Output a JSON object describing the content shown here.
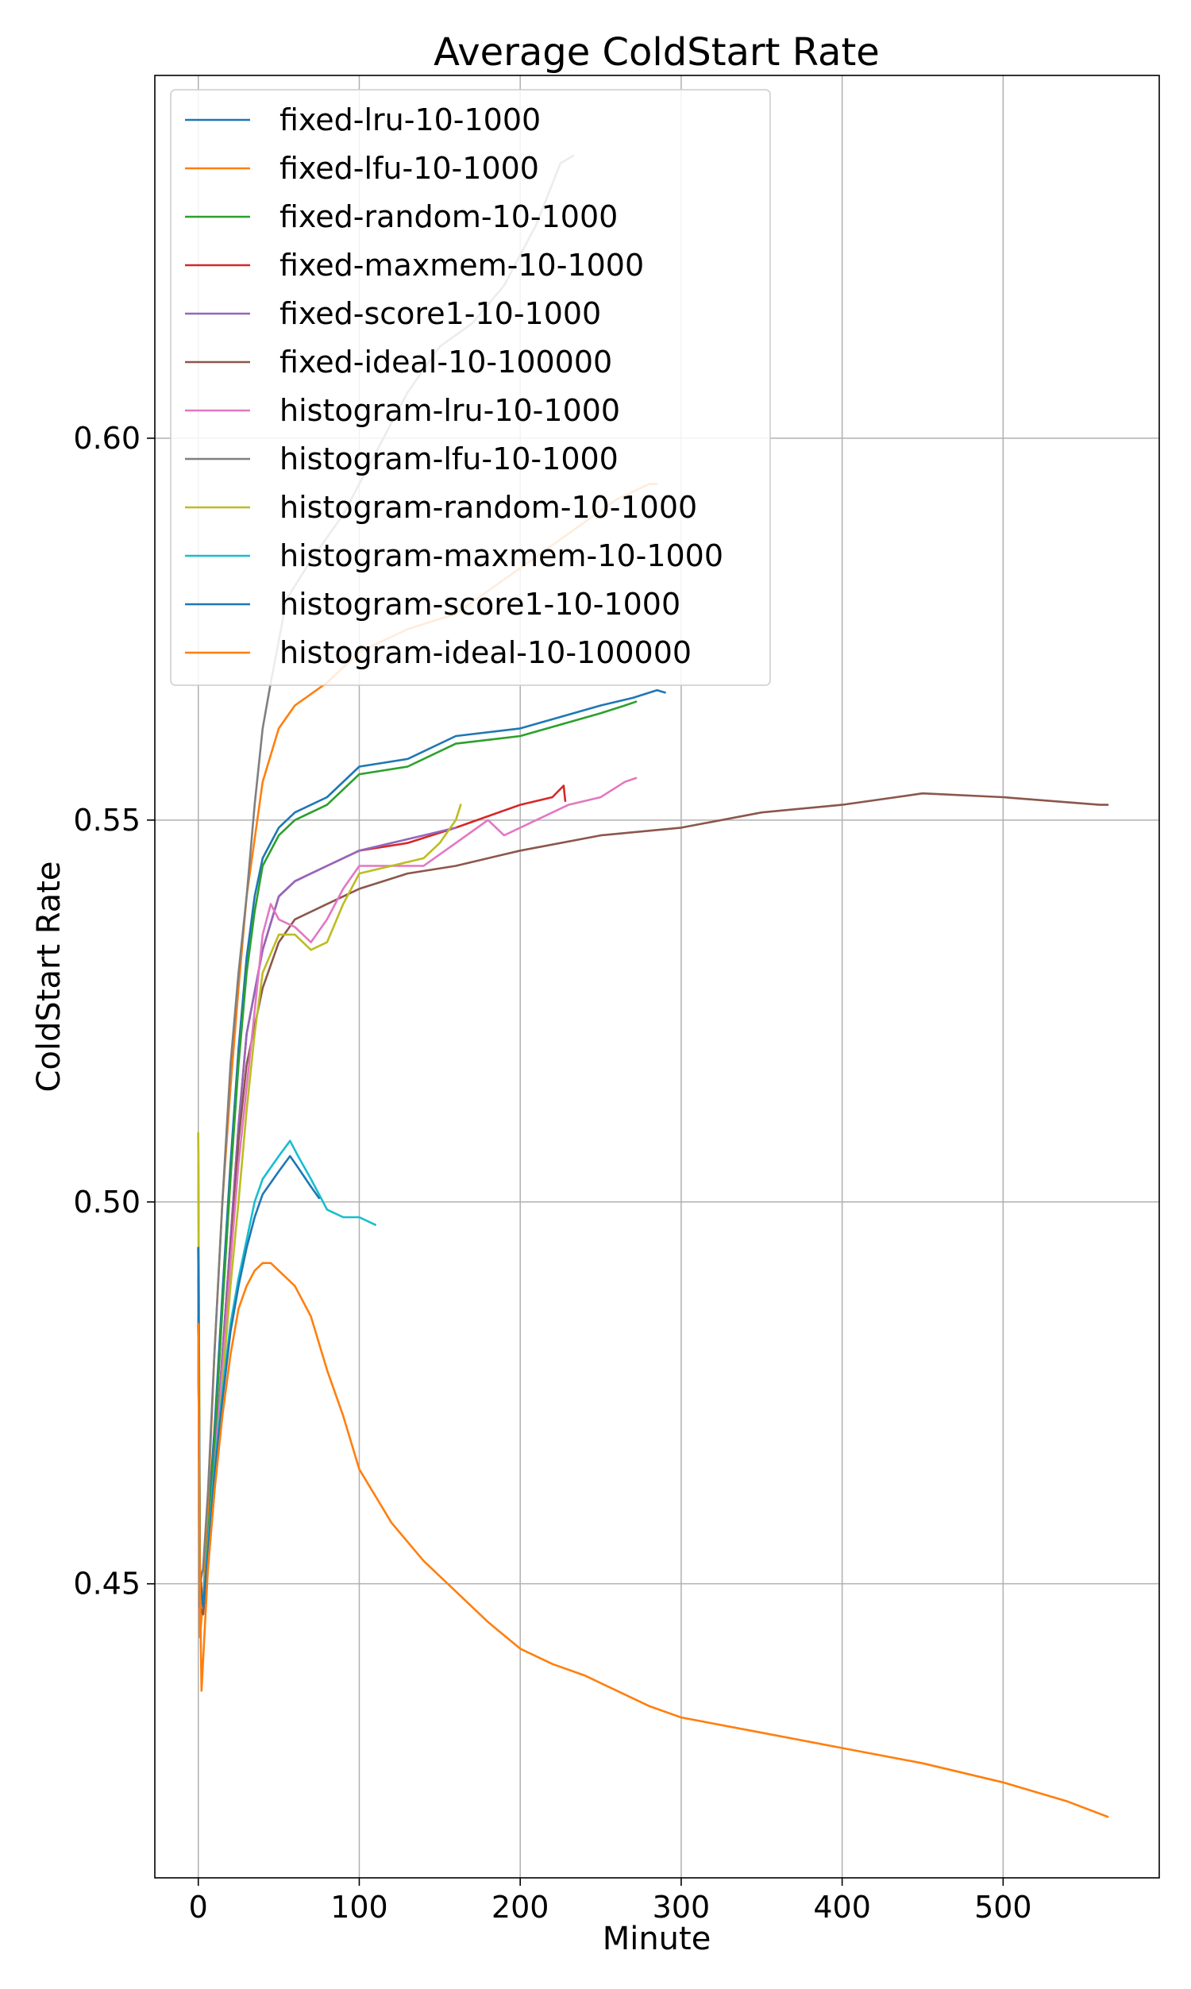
{
  "chart_data": {
    "type": "line",
    "title": "Average ColdStart Rate",
    "xlabel": "Minute",
    "ylabel": "ColdStart Rate",
    "xlim": [
      -27,
      597
    ],
    "ylim": [
      0.4115,
      0.6475
    ],
    "xticks": [
      0,
      100,
      200,
      300,
      400,
      500
    ],
    "yticks": [
      0.45,
      0.5,
      0.55,
      0.6
    ],
    "xtick_labels": [
      "0",
      "100",
      "200",
      "300",
      "400",
      "500"
    ],
    "ytick_labels": [
      "0.45",
      "0.50",
      "0.55",
      "0.60"
    ],
    "grid": true,
    "legend_position": "top-left",
    "series": [
      {
        "name": "fixed-lru-10-1000",
        "color": "#1f77b4",
        "points": [
          [
            0,
            0.494
          ],
          [
            1,
            0.452
          ],
          [
            3,
            0.446
          ],
          [
            6,
            0.458
          ],
          [
            10,
            0.47
          ],
          [
            15,
            0.488
          ],
          [
            20,
            0.505
          ],
          [
            25,
            0.52
          ],
          [
            30,
            0.532
          ],
          [
            35,
            0.54
          ],
          [
            40,
            0.545
          ],
          [
            50,
            0.549
          ],
          [
            60,
            0.551
          ],
          [
            80,
            0.553
          ],
          [
            100,
            0.557
          ],
          [
            130,
            0.558
          ],
          [
            160,
            0.561
          ],
          [
            200,
            0.562
          ],
          [
            250,
            0.565
          ],
          [
            270,
            0.566
          ],
          [
            285,
            0.567
          ],
          [
            290,
            0.5667
          ]
        ]
      },
      {
        "name": "fixed-lfu-10-1000",
        "color": "#ff7f0e",
        "points": [
          [
            0,
            0.485
          ],
          [
            1,
            0.443
          ],
          [
            3,
            0.448
          ],
          [
            6,
            0.46
          ],
          [
            10,
            0.48
          ],
          [
            15,
            0.5
          ],
          [
            20,
            0.515
          ],
          [
            25,
            0.528
          ],
          [
            30,
            0.54
          ],
          [
            40,
            0.555
          ],
          [
            50,
            0.562
          ],
          [
            60,
            0.565
          ],
          [
            80,
            0.568
          ],
          [
            100,
            0.572
          ],
          [
            130,
            0.575
          ],
          [
            160,
            0.577
          ],
          [
            200,
            0.583
          ],
          [
            220,
            0.586
          ],
          [
            240,
            0.589
          ],
          [
            260,
            0.592
          ],
          [
            280,
            0.594
          ],
          [
            285,
            0.594
          ]
        ]
      },
      {
        "name": "fixed-random-10-1000",
        "color": "#2ca02c",
        "points": [
          [
            0,
            0.509
          ],
          [
            1,
            0.45
          ],
          [
            3,
            0.447
          ],
          [
            6,
            0.456
          ],
          [
            10,
            0.468
          ],
          [
            15,
            0.486
          ],
          [
            20,
            0.503
          ],
          [
            25,
            0.518
          ],
          [
            30,
            0.53
          ],
          [
            35,
            0.538
          ],
          [
            40,
            0.544
          ],
          [
            50,
            0.548
          ],
          [
            60,
            0.55
          ],
          [
            80,
            0.552
          ],
          [
            100,
            0.556
          ],
          [
            130,
            0.557
          ],
          [
            160,
            0.56
          ],
          [
            200,
            0.561
          ],
          [
            250,
            0.564
          ],
          [
            265,
            0.565
          ],
          [
            272,
            0.5655
          ]
        ]
      },
      {
        "name": "fixed-maxmem-10-1000",
        "color": "#d62728",
        "points": [
          [
            0,
            0.484
          ],
          [
            1,
            0.45
          ],
          [
            3,
            0.447
          ],
          [
            6,
            0.455
          ],
          [
            10,
            0.465
          ],
          [
            15,
            0.48
          ],
          [
            20,
            0.495
          ],
          [
            25,
            0.51
          ],
          [
            30,
            0.522
          ],
          [
            40,
            0.533
          ],
          [
            50,
            0.54
          ],
          [
            60,
            0.542
          ],
          [
            80,
            0.544
          ],
          [
            100,
            0.546
          ],
          [
            130,
            0.547
          ],
          [
            160,
            0.549
          ],
          [
            200,
            0.552
          ],
          [
            220,
            0.553
          ],
          [
            227,
            0.5545
          ],
          [
            228,
            0.5525
          ]
        ]
      },
      {
        "name": "fixed-score1-10-1000",
        "color": "#9467bd",
        "points": [
          [
            0,
            0.484
          ],
          [
            1,
            0.45
          ],
          [
            3,
            0.447
          ],
          [
            6,
            0.455
          ],
          [
            10,
            0.465
          ],
          [
            15,
            0.48
          ],
          [
            20,
            0.495
          ],
          [
            25,
            0.51
          ],
          [
            30,
            0.522
          ],
          [
            40,
            0.533
          ],
          [
            50,
            0.54
          ],
          [
            60,
            0.542
          ],
          [
            80,
            0.544
          ],
          [
            100,
            0.546
          ],
          [
            120,
            0.547
          ],
          [
            140,
            0.548
          ],
          [
            160,
            0.549
          ]
        ]
      },
      {
        "name": "fixed-ideal-10-100000",
        "color": "#8c564b",
        "points": [
          [
            0,
            0.484
          ],
          [
            1,
            0.447
          ],
          [
            3,
            0.446
          ],
          [
            6,
            0.452
          ],
          [
            10,
            0.462
          ],
          [
            15,
            0.478
          ],
          [
            20,
            0.493
          ],
          [
            25,
            0.508
          ],
          [
            30,
            0.518
          ],
          [
            40,
            0.528
          ],
          [
            50,
            0.534
          ],
          [
            60,
            0.537
          ],
          [
            80,
            0.539
          ],
          [
            100,
            0.541
          ],
          [
            130,
            0.543
          ],
          [
            160,
            0.544
          ],
          [
            200,
            0.546
          ],
          [
            250,
            0.548
          ],
          [
            300,
            0.549
          ],
          [
            350,
            0.551
          ],
          [
            400,
            0.552
          ],
          [
            450,
            0.5535
          ],
          [
            500,
            0.553
          ],
          [
            530,
            0.5525
          ],
          [
            560,
            0.552
          ],
          [
            565,
            0.552
          ]
        ]
      },
      {
        "name": "histogram-lru-10-1000",
        "color": "#e377c2",
        "points": [
          [
            0,
            0.484
          ],
          [
            1,
            0.45
          ],
          [
            3,
            0.447
          ],
          [
            6,
            0.455
          ],
          [
            10,
            0.465
          ],
          [
            15,
            0.478
          ],
          [
            20,
            0.492
          ],
          [
            25,
            0.505
          ],
          [
            30,
            0.515
          ],
          [
            35,
            0.525
          ],
          [
            40,
            0.535
          ],
          [
            45,
            0.539
          ],
          [
            50,
            0.537
          ],
          [
            60,
            0.536
          ],
          [
            70,
            0.534
          ],
          [
            80,
            0.537
          ],
          [
            90,
            0.541
          ],
          [
            100,
            0.544
          ],
          [
            120,
            0.544
          ],
          [
            140,
            0.544
          ],
          [
            160,
            0.547
          ],
          [
            180,
            0.55
          ],
          [
            190,
            0.548
          ],
          [
            210,
            0.55
          ],
          [
            230,
            0.552
          ],
          [
            250,
            0.553
          ],
          [
            265,
            0.555
          ],
          [
            272,
            0.5555
          ]
        ]
      },
      {
        "name": "histogram-lfu-10-1000",
        "color": "#7f7f7f",
        "points": [
          [
            0,
            0.49
          ],
          [
            1,
            0.45
          ],
          [
            3,
            0.452
          ],
          [
            6,
            0.462
          ],
          [
            10,
            0.48
          ],
          [
            15,
            0.5
          ],
          [
            20,
            0.518
          ],
          [
            25,
            0.53
          ],
          [
            30,
            0.54
          ],
          [
            35,
            0.552
          ],
          [
            40,
            0.562
          ],
          [
            45,
            0.568
          ],
          [
            55,
            0.579
          ],
          [
            70,
            0.584
          ],
          [
            90,
            0.59
          ],
          [
            110,
            0.598
          ],
          [
            130,
            0.606
          ],
          [
            150,
            0.612
          ],
          [
            170,
            0.615
          ],
          [
            190,
            0.62
          ],
          [
            210,
            0.628
          ],
          [
            225,
            0.636
          ],
          [
            233,
            0.637
          ]
        ]
      },
      {
        "name": "histogram-random-10-1000",
        "color": "#bcbd22",
        "points": [
          [
            0,
            0.509
          ],
          [
            1,
            0.451
          ],
          [
            3,
            0.447
          ],
          [
            6,
            0.455
          ],
          [
            10,
            0.464
          ],
          [
            15,
            0.476
          ],
          [
            20,
            0.489
          ],
          [
            25,
            0.5
          ],
          [
            30,
            0.512
          ],
          [
            35,
            0.522
          ],
          [
            40,
            0.53
          ],
          [
            50,
            0.535
          ],
          [
            60,
            0.535
          ],
          [
            70,
            0.533
          ],
          [
            80,
            0.534
          ],
          [
            90,
            0.539
          ],
          [
            100,
            0.543
          ],
          [
            120,
            0.544
          ],
          [
            140,
            0.545
          ],
          [
            150,
            0.547
          ],
          [
            160,
            0.55
          ],
          [
            163,
            0.552
          ]
        ]
      },
      {
        "name": "histogram-maxmem-10-1000",
        "color": "#17becf",
        "points": [
          [
            0,
            0.494
          ],
          [
            1,
            0.451
          ],
          [
            3,
            0.447
          ],
          [
            6,
            0.455
          ],
          [
            10,
            0.465
          ],
          [
            15,
            0.475
          ],
          [
            20,
            0.484
          ],
          [
            25,
            0.49
          ],
          [
            30,
            0.495
          ],
          [
            35,
            0.5
          ],
          [
            40,
            0.503
          ],
          [
            50,
            0.506
          ],
          [
            57,
            0.508
          ],
          [
            62,
            0.506
          ],
          [
            70,
            0.503
          ],
          [
            80,
            0.499
          ],
          [
            90,
            0.498
          ],
          [
            100,
            0.498
          ],
          [
            110,
            0.497
          ]
        ]
      },
      {
        "name": "histogram-score1-10-1000",
        "color": "#1f77b4",
        "points": [
          [
            0,
            0.494
          ],
          [
            1,
            0.451
          ],
          [
            3,
            0.447
          ],
          [
            6,
            0.454
          ],
          [
            10,
            0.464
          ],
          [
            15,
            0.474
          ],
          [
            20,
            0.483
          ],
          [
            25,
            0.489
          ],
          [
            30,
            0.494
          ],
          [
            35,
            0.498
          ],
          [
            40,
            0.501
          ],
          [
            50,
            0.504
          ],
          [
            57,
            0.506
          ],
          [
            62,
            0.5045
          ],
          [
            70,
            0.502
          ],
          [
            75,
            0.5005
          ]
        ]
      },
      {
        "name": "histogram-ideal-10-100000",
        "color": "#ff7f0e",
        "points": [
          [
            0,
            0.484
          ],
          [
            1,
            0.45
          ],
          [
            2,
            0.436
          ],
          [
            3,
            0.44
          ],
          [
            6,
            0.452
          ],
          [
            10,
            0.462
          ],
          [
            15,
            0.472
          ],
          [
            20,
            0.48
          ],
          [
            25,
            0.486
          ],
          [
            30,
            0.489
          ],
          [
            35,
            0.491
          ],
          [
            40,
            0.492
          ],
          [
            45,
            0.492
          ],
          [
            50,
            0.491
          ],
          [
            60,
            0.489
          ],
          [
            70,
            0.485
          ],
          [
            80,
            0.478
          ],
          [
            90,
            0.472
          ],
          [
            100,
            0.465
          ],
          [
            120,
            0.458
          ],
          [
            140,
            0.453
          ],
          [
            160,
            0.449
          ],
          [
            180,
            0.445
          ],
          [
            200,
            0.4415
          ],
          [
            220,
            0.4395
          ],
          [
            240,
            0.438
          ],
          [
            260,
            0.436
          ],
          [
            280,
            0.434
          ],
          [
            300,
            0.4325
          ],
          [
            350,
            0.4305
          ],
          [
            400,
            0.4285
          ],
          [
            450,
            0.4265
          ],
          [
            500,
            0.424
          ],
          [
            540,
            0.4215
          ],
          [
            565,
            0.4195
          ]
        ]
      }
    ]
  }
}
